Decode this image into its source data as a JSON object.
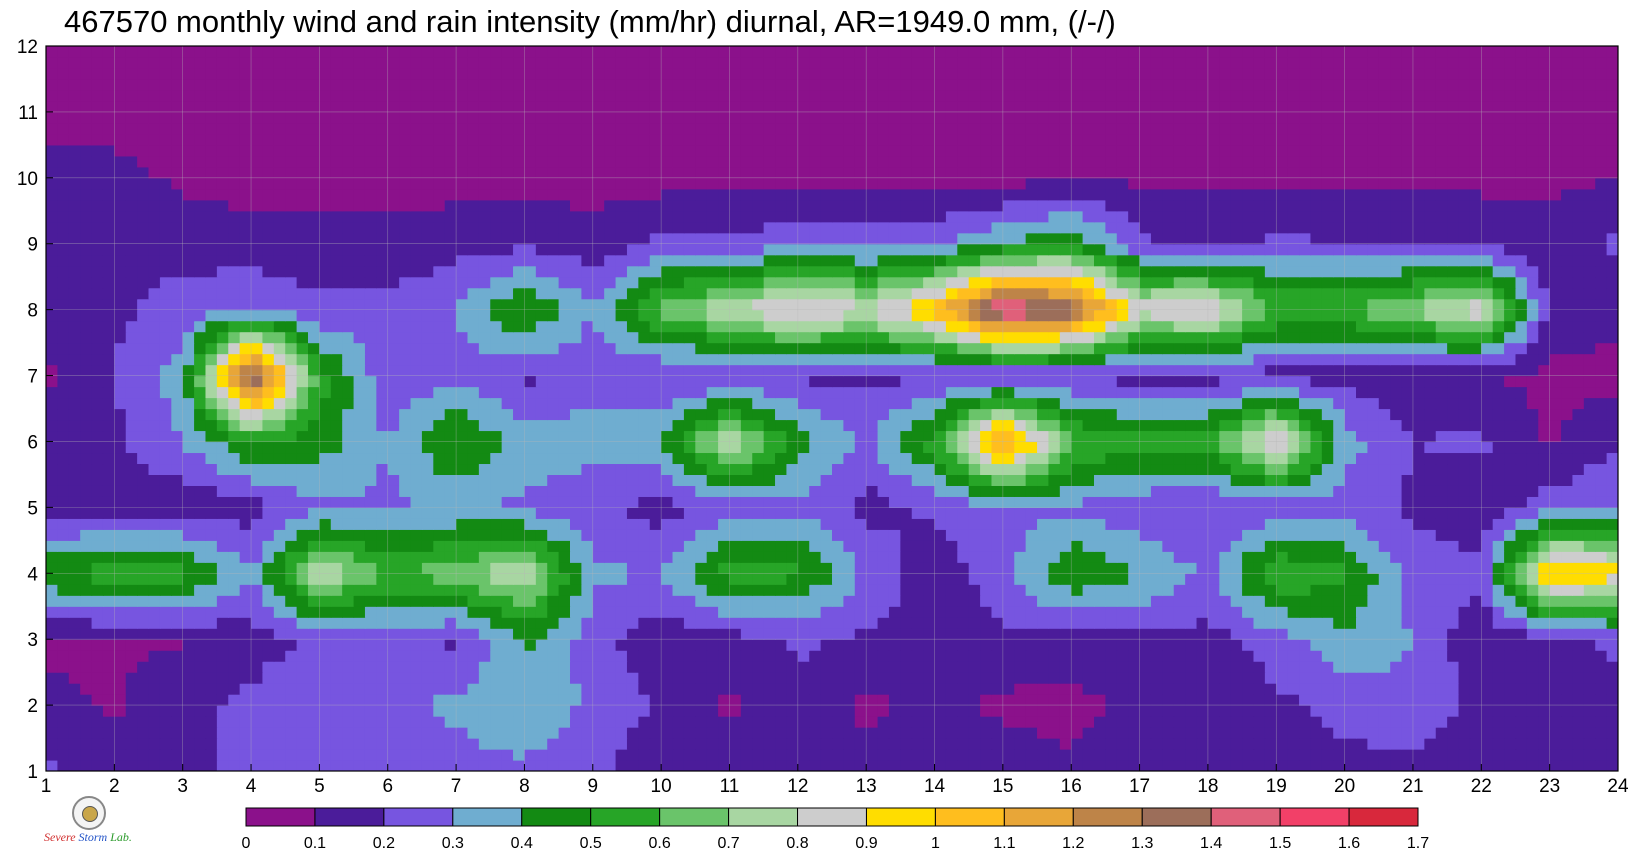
{
  "title": "467570 monthly wind and rain intensity (mm/hr) diurnal, AR=1949.0 mm, (/-/)",
  "chart_data": {
    "type": "heatmap",
    "subtype": "filled-contour",
    "title": "467570 monthly wind and rain intensity (mm/hr) diurnal, AR=1949.0 mm, (/-/)",
    "xlabel": "",
    "ylabel": "",
    "xlim": [
      1,
      24
    ],
    "ylim": [
      1,
      12
    ],
    "x_ticks": [
      1,
      2,
      3,
      4,
      5,
      6,
      7,
      8,
      9,
      10,
      11,
      12,
      13,
      14,
      15,
      16,
      17,
      18,
      19,
      20,
      21,
      22,
      23,
      24
    ],
    "y_ticks": [
      1,
      2,
      3,
      4,
      5,
      6,
      7,
      8,
      9,
      10,
      11,
      12
    ],
    "grid": true,
    "x": [
      1,
      2,
      3,
      4,
      5,
      6,
      7,
      8,
      9,
      10,
      11,
      12,
      13,
      14,
      15,
      16,
      17,
      18,
      19,
      20,
      21,
      22,
      23,
      24
    ],
    "y": [
      1,
      2,
      3,
      4,
      5,
      6,
      7,
      8,
      9,
      10,
      11,
      12
    ],
    "z": [
      [
        0.22,
        0.12,
        0.18,
        0.22,
        0.22,
        0.24,
        0.26,
        0.28,
        0.22,
        0.12,
        0.15,
        0.18,
        0.12,
        0.18,
        0.16,
        0.12,
        0.18,
        0.16,
        0.18,
        0.18,
        0.16,
        0.12,
        0.12,
        0.14
      ],
      [
        0.12,
        0.09,
        0.18,
        0.22,
        0.28,
        0.28,
        0.32,
        0.38,
        0.28,
        0.18,
        0.08,
        0.16,
        0.08,
        0.12,
        0.08,
        0.06,
        0.14,
        0.1,
        0.18,
        0.22,
        0.28,
        0.16,
        0.18,
        0.16
      ],
      [
        0.08,
        0.09,
        0.09,
        0.16,
        0.22,
        0.22,
        0.18,
        0.42,
        0.25,
        0.12,
        0.16,
        0.22,
        0.18,
        0.16,
        0.18,
        0.16,
        0.18,
        0.16,
        0.25,
        0.38,
        0.3,
        0.12,
        0.16,
        0.22
      ],
      [
        0.5,
        0.55,
        0.55,
        0.3,
        0.8,
        0.6,
        0.65,
        0.8,
        0.32,
        0.3,
        0.55,
        0.52,
        0.28,
        0.14,
        0.25,
        0.5,
        0.4,
        0.28,
        0.6,
        0.52,
        0.25,
        0.22,
        1.05,
        0.95
      ],
      [
        0.11,
        0.16,
        0.12,
        0.16,
        0.28,
        0.28,
        0.32,
        0.28,
        0.22,
        0.16,
        0.25,
        0.28,
        0.16,
        0.22,
        0.28,
        0.28,
        0.22,
        0.2,
        0.22,
        0.25,
        0.18,
        0.14,
        0.25,
        0.3
      ],
      [
        0.18,
        0.18,
        0.3,
        0.5,
        0.45,
        0.3,
        0.52,
        0.35,
        0.35,
        0.4,
        0.82,
        0.45,
        0.28,
        0.55,
        1.2,
        0.62,
        0.55,
        0.55,
        0.95,
        0.35,
        0.2,
        0.22,
        0.08,
        0.2
      ],
      [
        0.08,
        0.2,
        0.35,
        1.45,
        0.55,
        0.22,
        0.28,
        0.18,
        0.25,
        0.18,
        0.18,
        0.18,
        0.18,
        0.18,
        0.18,
        0.18,
        0.16,
        0.16,
        0.16,
        0.16,
        0.12,
        0.1,
        0.08,
        0.06
      ],
      [
        0.16,
        0.18,
        0.24,
        0.3,
        0.22,
        0.22,
        0.3,
        0.52,
        0.3,
        0.65,
        0.78,
        0.95,
        0.82,
        1.05,
        1.55,
        1.4,
        0.85,
        0.92,
        0.6,
        0.6,
        0.72,
        0.88,
        0.16,
        0.14
      ],
      [
        0.2,
        0.18,
        0.16,
        0.14,
        0.14,
        0.14,
        0.16,
        0.18,
        0.14,
        0.22,
        0.22,
        0.28,
        0.25,
        0.28,
        0.4,
        0.48,
        0.22,
        0.18,
        0.22,
        0.2,
        0.18,
        0.16,
        0.14,
        0.22
      ],
      [
        0.12,
        0.14,
        0.08,
        0.06,
        0.06,
        0.06,
        0.06,
        0.06,
        0.06,
        0.06,
        0.06,
        0.06,
        0.06,
        0.06,
        0.06,
        0.1,
        0.08,
        0.08,
        0.08,
        0.08,
        0.08,
        0.08,
        0.08,
        0.1
      ],
      [
        0.08,
        0.05,
        0.04,
        0.04,
        0.04,
        0.04,
        0.04,
        0.04,
        0.04,
        0.04,
        0.04,
        0.04,
        0.04,
        0.04,
        0.04,
        0.04,
        0.04,
        0.04,
        0.04,
        0.04,
        0.04,
        0.04,
        0.04,
        0.04
      ],
      [
        0.04,
        0.04,
        0.04,
        0.04,
        0.04,
        0.04,
        0.04,
        0.04,
        0.04,
        0.04,
        0.04,
        0.04,
        0.04,
        0.04,
        0.04,
        0.04,
        0.04,
        0.04,
        0.04,
        0.04,
        0.04,
        0.04,
        0.04,
        0.04
      ]
    ],
    "colorbar": {
      "levels": [
        0,
        0.1,
        0.2,
        0.3,
        0.4,
        0.5,
        0.6,
        0.7,
        0.8,
        0.9,
        1,
        1.1,
        1.2,
        1.3,
        1.4,
        1.5,
        1.6,
        1.7
      ],
      "labels": [
        "0",
        "0.1",
        "0.2",
        "0.3",
        "0.4",
        "0.5",
        "0.6",
        "0.7",
        "0.8",
        "0.9",
        "1",
        "1.1",
        "1.2",
        "1.3",
        "1.4",
        "1.5",
        "1.6",
        "1.7"
      ],
      "colors": [
        "#8b118b",
        "#4b1c9a",
        "#7755e0",
        "#6fadd0",
        "#138a13",
        "#27a527",
        "#6ac46a",
        "#a8d6a2",
        "#cdcdcd",
        "#ffdd00",
        "#ffbe1e",
        "#e8a638",
        "#be8448",
        "#9c6e5a",
        "#e0607a",
        "#f24068",
        "#d8283c"
      ]
    },
    "contour_line_color": "#f0a020",
    "grid_color": "#b8b8b8"
  },
  "logo": {
    "line1": "Severe",
    "line2": "Storm",
    "line3": "Lab."
  }
}
